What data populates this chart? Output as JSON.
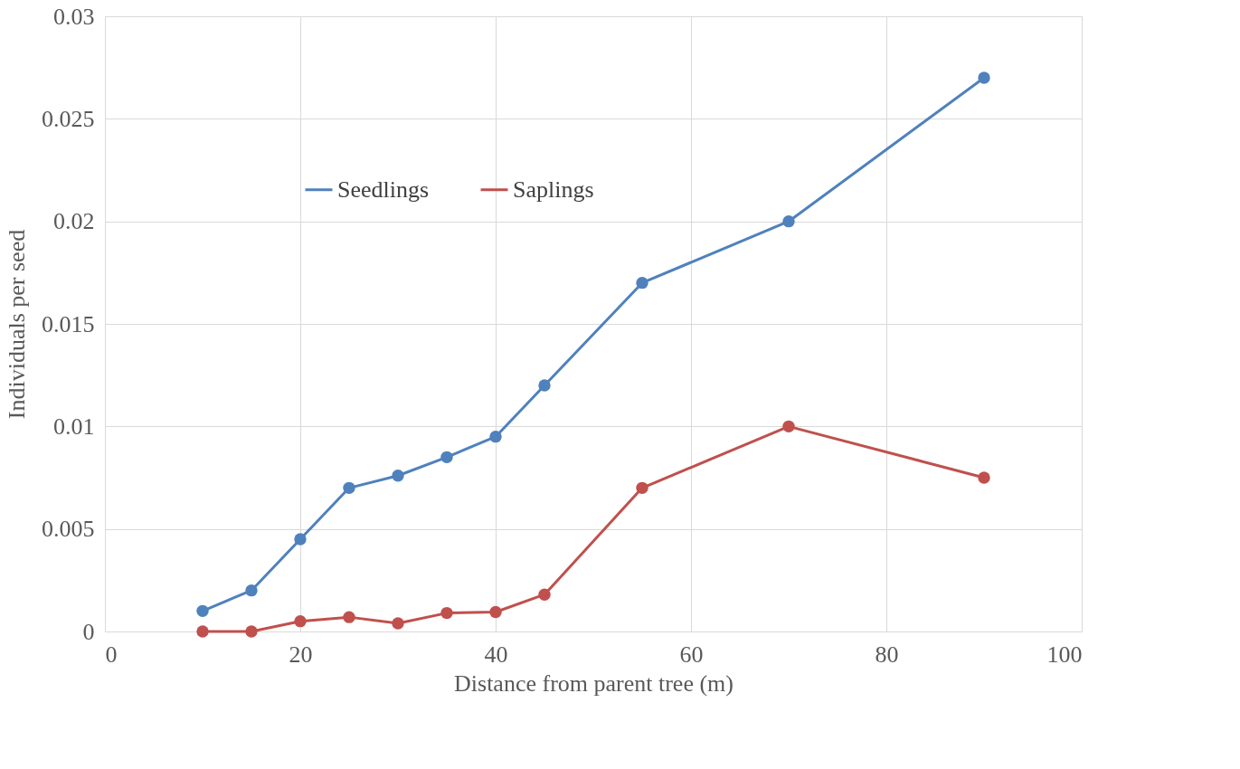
{
  "chart_data": {
    "type": "line",
    "xlabel": "Distance from parent tree (m)",
    "ylabel": "Individuals per seed",
    "xlim": [
      0,
      100
    ],
    "xticks": [
      0,
      20,
      40,
      60,
      80,
      100
    ],
    "ylim": [
      0,
      0.03
    ],
    "yticks": [
      0,
      0.005,
      0.01,
      0.015,
      0.02,
      0.025,
      0.03
    ],
    "grid": true,
    "legend": "top",
    "marker": "circle",
    "line_style": "solid",
    "x": [
      10,
      15,
      20,
      25,
      30,
      35,
      40,
      45,
      55,
      70,
      90
    ],
    "series": [
      {
        "name": "Seedlings",
        "color": "#4f81bd",
        "values": [
          0.001,
          0.002,
          0.0045,
          0.007,
          0.0076,
          0.0085,
          0.0095,
          0.012,
          0.017,
          0.02,
          0.027
        ]
      },
      {
        "name": "Saplings",
        "color": "#c0504d",
        "values": [
          0,
          0,
          0.0005,
          0.0007,
          0.0004,
          0.0009,
          0.00095,
          0.0018,
          0.007,
          0.01,
          0.0075
        ]
      }
    ]
  }
}
